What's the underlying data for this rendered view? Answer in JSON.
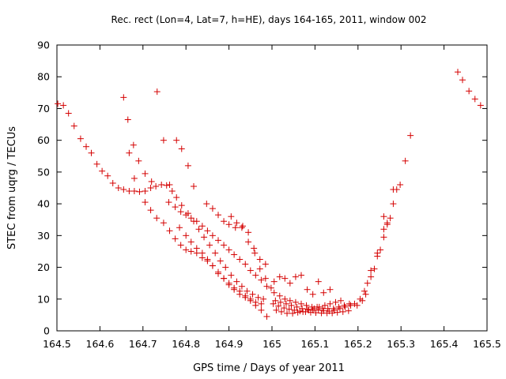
{
  "chart_data": {
    "type": "scatter",
    "title": "Rec. rect (Lon=4, Lat=7, h=HE), days 164-165, 2011, window 002",
    "xlabel": "GPS time / Days of year 2011",
    "ylabel": "STEC from uqrg / TECUs",
    "xlim": [
      164.5,
      165.5
    ],
    "ylim": [
      0,
      90
    ],
    "xticks": [
      "164.5",
      "164.6",
      "164.7",
      "164.8",
      "164.9",
      "165",
      "165.1",
      "165.2",
      "165.3",
      "165.4",
      "165.5"
    ],
    "yticks": [
      "0",
      "10",
      "20",
      "30",
      "40",
      "50",
      "60",
      "70",
      "80",
      "90"
    ],
    "grid": false,
    "marker": "+",
    "marker_color": "#d40000",
    "series": [
      {
        "name": "",
        "points": [
          [
            164.502,
            71.5
          ],
          [
            164.515,
            71.0
          ],
          [
            164.527,
            68.5
          ],
          [
            164.54,
            64.5
          ],
          [
            164.555,
            60.5
          ],
          [
            164.568,
            58.0
          ],
          [
            164.58,
            56.0
          ],
          [
            164.593,
            52.5
          ],
          [
            164.605,
            50.3
          ],
          [
            164.618,
            48.8
          ],
          [
            164.63,
            46.5
          ],
          [
            164.643,
            45.0
          ],
          [
            164.655,
            44.5
          ],
          [
            164.668,
            44.0
          ],
          [
            164.68,
            44.0
          ],
          [
            164.692,
            43.8
          ],
          [
            164.705,
            44.0
          ],
          [
            164.718,
            45.0
          ],
          [
            164.73,
            45.5
          ],
          [
            164.743,
            46.0
          ],
          [
            164.755,
            45.8
          ],
          [
            164.768,
            44.0
          ],
          [
            164.655,
            73.5
          ],
          [
            164.665,
            66.5
          ],
          [
            164.668,
            56.0
          ],
          [
            164.678,
            58.5
          ],
          [
            164.69,
            53.5
          ],
          [
            164.705,
            49.5
          ],
          [
            164.72,
            47.0
          ],
          [
            164.733,
            75.3
          ],
          [
            164.748,
            60.0
          ],
          [
            164.762,
            46.0
          ],
          [
            164.778,
            60.0
          ],
          [
            164.79,
            57.3
          ],
          [
            164.805,
            52.0
          ],
          [
            164.818,
            45.5
          ],
          [
            164.68,
            48.0
          ],
          [
            164.705,
            40.5
          ],
          [
            164.718,
            38.0
          ],
          [
            164.732,
            35.5
          ],
          [
            164.748,
            34.0
          ],
          [
            164.762,
            31.5
          ],
          [
            164.775,
            29.0
          ],
          [
            164.788,
            27.0
          ],
          [
            164.8,
            25.5
          ],
          [
            164.812,
            25.0
          ],
          [
            164.825,
            24.5
          ],
          [
            164.838,
            23.0
          ],
          [
            164.85,
            22.0
          ],
          [
            164.862,
            20.5
          ],
          [
            164.875,
            18.5
          ],
          [
            164.888,
            16.5
          ],
          [
            164.9,
            14.5
          ],
          [
            164.912,
            13.0
          ],
          [
            164.925,
            11.5
          ],
          [
            164.938,
            10.5
          ],
          [
            164.95,
            9.5
          ],
          [
            164.962,
            9.0
          ],
          [
            164.975,
            8.5
          ],
          [
            164.76,
            40.5
          ],
          [
            164.775,
            39.0
          ],
          [
            164.788,
            37.5
          ],
          [
            164.8,
            36.5
          ],
          [
            164.812,
            35.5
          ],
          [
            164.825,
            34.5
          ],
          [
            164.838,
            33.0
          ],
          [
            164.85,
            31.5
          ],
          [
            164.862,
            30.0
          ],
          [
            164.875,
            28.5
          ],
          [
            164.888,
            27.0
          ],
          [
            164.9,
            25.5
          ],
          [
            164.912,
            24.0
          ],
          [
            164.925,
            22.5
          ],
          [
            164.938,
            21.0
          ],
          [
            164.95,
            19.0
          ],
          [
            164.962,
            17.5
          ],
          [
            164.975,
            16.0
          ],
          [
            164.988,
            14.0
          ],
          [
            164.778,
            42.0
          ],
          [
            164.79,
            39.5
          ],
          [
            164.805,
            37.0
          ],
          [
            164.818,
            34.5
          ],
          [
            164.83,
            32.0
          ],
          [
            164.842,
            29.5
          ],
          [
            164.855,
            27.0
          ],
          [
            164.868,
            24.5
          ],
          [
            164.88,
            22.0
          ],
          [
            164.892,
            20.0
          ],
          [
            164.905,
            17.5
          ],
          [
            164.918,
            15.5
          ],
          [
            164.93,
            14.0
          ],
          [
            164.942,
            12.5
          ],
          [
            164.955,
            11.5
          ],
          [
            164.968,
            10.5
          ],
          [
            164.98,
            10.0
          ],
          [
            164.785,
            32.5
          ],
          [
            164.8,
            30.0
          ],
          [
            164.812,
            28.0
          ],
          [
            164.825,
            26.0
          ],
          [
            164.838,
            24.5
          ],
          [
            164.85,
            22.5
          ],
          [
            164.862,
            20.5
          ],
          [
            164.875,
            18.0
          ],
          [
            164.888,
            16.5
          ],
          [
            164.9,
            15.0
          ],
          [
            164.912,
            13.5
          ],
          [
            164.925,
            12.5
          ],
          [
            164.938,
            11.0
          ],
          [
            164.95,
            10.0
          ],
          [
            164.962,
            8.0
          ],
          [
            164.975,
            6.5
          ],
          [
            164.988,
            4.5
          ],
          [
            164.848,
            40.0
          ],
          [
            164.862,
            38.5
          ],
          [
            164.875,
            36.5
          ],
          [
            164.888,
            34.5
          ],
          [
            164.9,
            33.5
          ],
          [
            164.915,
            32.5
          ],
          [
            164.93,
            32.5
          ],
          [
            164.945,
            31.0
          ],
          [
            164.958,
            26.0
          ],
          [
            164.972,
            22.5
          ],
          [
            164.985,
            21.0
          ],
          [
            164.905,
            36.0
          ],
          [
            164.918,
            34.0
          ],
          [
            164.932,
            33.0
          ],
          [
            164.945,
            28.0
          ],
          [
            164.96,
            24.5
          ],
          [
            164.972,
            19.5
          ],
          [
            164.985,
            16.5
          ],
          [
            164.998,
            13.5
          ],
          [
            165.005,
            15.5
          ],
          [
            165.018,
            17.0
          ],
          [
            165.03,
            16.5
          ],
          [
            165.042,
            15.0
          ],
          [
            165.055,
            17.0
          ],
          [
            165.068,
            17.5
          ],
          [
            165.082,
            13.0
          ],
          [
            165.095,
            11.5
          ],
          [
            165.108,
            15.5
          ],
          [
            165.12,
            12.0
          ],
          [
            165.135,
            13.0
          ],
          [
            165.005,
            12.0
          ],
          [
            165.018,
            11.0
          ],
          [
            165.03,
            10.0
          ],
          [
            165.042,
            9.5
          ],
          [
            165.055,
            9.0
          ],
          [
            165.068,
            8.5
          ],
          [
            165.08,
            8.0
          ],
          [
            165.093,
            7.5
          ],
          [
            165.105,
            7.5
          ],
          [
            165.118,
            7.0
          ],
          [
            165.13,
            7.0
          ],
          [
            165.143,
            7.0
          ],
          [
            165.155,
            7.5
          ],
          [
            165.168,
            8.0
          ],
          [
            165.18,
            8.5
          ],
          [
            165.192,
            8.5
          ],
          [
            165.003,
            8.5
          ],
          [
            165.015,
            7.8
          ],
          [
            165.028,
            7.2
          ],
          [
            165.04,
            6.8
          ],
          [
            165.052,
            6.5
          ],
          [
            165.065,
            6.2
          ],
          [
            165.078,
            6.0
          ],
          [
            165.09,
            5.8
          ],
          [
            165.102,
            5.7
          ],
          [
            165.115,
            5.6
          ],
          [
            165.128,
            5.6
          ],
          [
            165.14,
            5.6
          ],
          [
            165.152,
            5.8
          ],
          [
            165.165,
            6.0
          ],
          [
            165.178,
            6.3
          ],
          [
            165.008,
            9.5
          ],
          [
            165.02,
            9.0
          ],
          [
            165.033,
            8.5
          ],
          [
            165.045,
            8.0
          ],
          [
            165.058,
            7.5
          ],
          [
            165.07,
            7.0
          ],
          [
            165.083,
            6.8
          ],
          [
            165.095,
            6.5
          ],
          [
            165.108,
            6.5
          ],
          [
            165.12,
            6.3
          ],
          [
            165.133,
            6.2
          ],
          [
            165.145,
            6.5
          ],
          [
            165.158,
            7.0
          ],
          [
            165.17,
            7.5
          ],
          [
            165.183,
            8.0
          ],
          [
            165.01,
            6.5
          ],
          [
            165.022,
            6.0
          ],
          [
            165.035,
            5.5
          ],
          [
            165.048,
            5.5
          ],
          [
            165.06,
            5.8
          ],
          [
            165.072,
            6.0
          ],
          [
            165.085,
            6.5
          ],
          [
            165.098,
            7.0
          ],
          [
            165.11,
            7.5
          ],
          [
            165.123,
            8.0
          ],
          [
            165.135,
            8.5
          ],
          [
            165.148,
            9.0
          ],
          [
            165.16,
            9.5
          ],
          [
            165.205,
            10.0
          ],
          [
            165.215,
            12.5
          ],
          [
            165.222,
            15.0
          ],
          [
            165.23,
            17.0
          ],
          [
            165.238,
            19.5
          ],
          [
            165.245,
            23.5
          ],
          [
            165.252,
            25.5
          ],
          [
            165.26,
            29.5
          ],
          [
            165.268,
            33.5
          ],
          [
            165.275,
            35.5
          ],
          [
            165.23,
            19.0
          ],
          [
            165.245,
            24.5
          ],
          [
            165.26,
            32.0
          ],
          [
            165.268,
            34.0
          ],
          [
            165.282,
            40.0
          ],
          [
            165.29,
            44.5
          ],
          [
            165.298,
            46.0
          ],
          [
            165.31,
            53.5
          ],
          [
            165.322,
            61.5
          ],
          [
            165.26,
            36.0
          ],
          [
            165.282,
            44.5
          ],
          [
            165.198,
            8.0
          ],
          [
            165.21,
            9.5
          ],
          [
            165.218,
            11.5
          ],
          [
            165.432,
            81.5
          ],
          [
            165.443,
            79.0
          ],
          [
            165.458,
            75.5
          ],
          [
            165.472,
            73.0
          ],
          [
            165.485,
            71.0
          ]
        ]
      }
    ]
  }
}
